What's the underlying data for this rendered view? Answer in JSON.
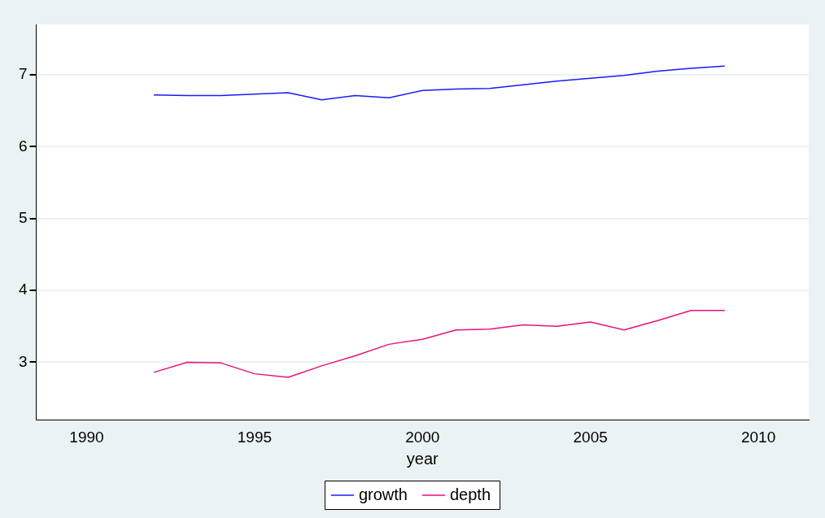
{
  "chart_data": {
    "type": "line",
    "xlabel": "year",
    "x": [
      1992,
      1993,
      1994,
      1995,
      1996,
      1997,
      1998,
      1999,
      2000,
      2001,
      2002,
      2003,
      2004,
      2005,
      2006,
      2007,
      2008,
      2009
    ],
    "series": [
      {
        "name": "growth",
        "color": "#1a1aff",
        "values": [
          6.72,
          6.71,
          6.71,
          6.73,
          6.75,
          6.65,
          6.71,
          6.68,
          6.78,
          6.8,
          6.81,
          6.86,
          6.91,
          6.95,
          6.99,
          7.05,
          7.09,
          7.12
        ]
      },
      {
        "name": "depth",
        "color": "#e8127a",
        "values": [
          2.86,
          3.0,
          2.99,
          2.84,
          2.79,
          2.95,
          3.09,
          3.25,
          3.32,
          3.45,
          3.46,
          3.52,
          3.5,
          3.56,
          3.45,
          3.58,
          3.72,
          3.72
        ]
      }
    ],
    "xlim": [
      1988.5,
      2011.5
    ],
    "xticks": [
      1990,
      1995,
      2000,
      2005,
      2010
    ],
    "ylim": [
      2.2,
      7.7
    ],
    "yticks": [
      3,
      4,
      5,
      6,
      7
    ],
    "grid": "y",
    "legend": "bottom",
    "marker": "none",
    "line_style": "solid"
  }
}
